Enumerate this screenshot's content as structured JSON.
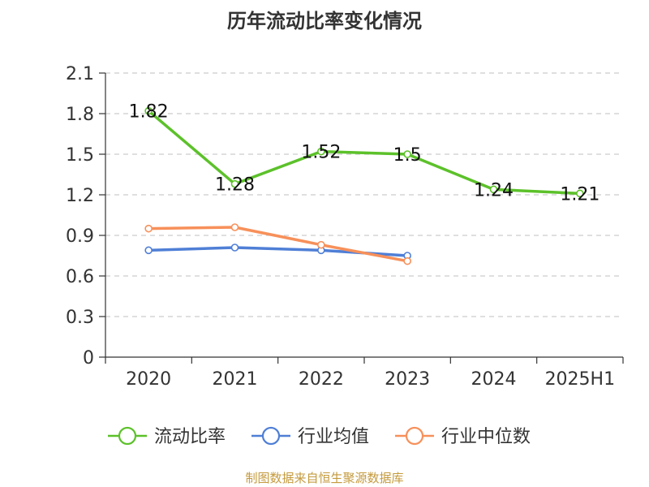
{
  "chart_data": {
    "type": "line",
    "title": "历年流动比率变化情况",
    "categories": [
      "2020",
      "2021",
      "2022",
      "2023",
      "2024",
      "2025H1"
    ],
    "ylim": [
      0,
      2.1
    ],
    "yticks": [
      "0",
      "0.3",
      "0.6",
      "0.9",
      "1.2",
      "1.5",
      "1.8",
      "2.1"
    ],
    "grid": true,
    "legend_position": "bottom",
    "series": [
      {
        "name": "流动比率",
        "values": [
          1.82,
          1.28,
          1.52,
          1.5,
          1.24,
          1.21
        ],
        "labels": [
          "1.82",
          "1.28",
          "1.52",
          "1.5",
          "1.24",
          "1.21"
        ],
        "color": "#5cc12a"
      },
      {
        "name": "行业均值",
        "values": [
          0.79,
          0.81,
          0.79,
          0.75,
          null,
          null
        ],
        "color": "#4f7fd6"
      },
      {
        "name": "行业中位数",
        "values": [
          0.95,
          0.96,
          0.83,
          0.71,
          null,
          null
        ],
        "color": "#f7905a"
      }
    ]
  },
  "source": "制图数据来自恒生聚源数据库"
}
